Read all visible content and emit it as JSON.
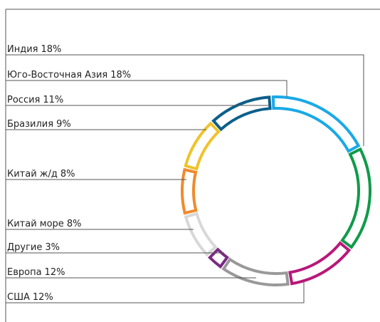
{
  "chart_data": {
    "type": "donut",
    "categories": [
      "Юго-Восточная Азия",
      "Индия",
      "США",
      "Европа",
      "Другие",
      "Китай море",
      "Китай ж/д",
      "Бразилия",
      "Россия"
    ],
    "values": [
      18,
      18,
      12,
      12,
      3,
      8,
      8,
      9,
      11
    ],
    "value_labels": [
      "18%",
      "18%",
      "12%",
      "12%",
      "3%",
      "8%",
      "8%",
      "9%",
      "11%"
    ],
    "colors": [
      "#1aa9e6",
      "#0f9b4a",
      "#b8187a",
      "#999999",
      "#7a2a82",
      "#d8d8d8",
      "#f08a2c",
      "#efc32a",
      "#0d5f8a"
    ]
  }
}
